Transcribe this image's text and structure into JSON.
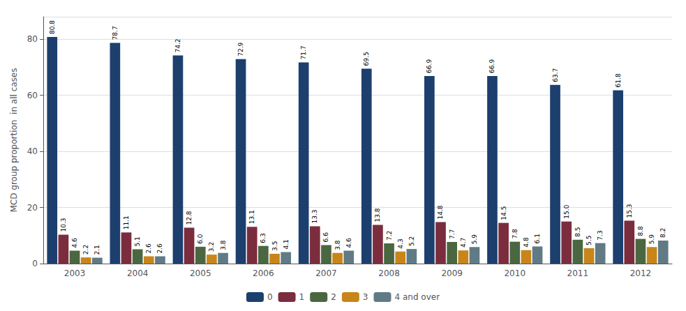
{
  "chart_data": {
    "type": "bar",
    "ylabel": "MCD group proportion  in all cases",
    "categories": [
      "2003",
      "2004",
      "2005",
      "2006",
      "2007",
      "2008",
      "2009",
      "2010",
      "2011",
      "2012"
    ],
    "series": [
      {
        "name": "0",
        "color": "#1C3F6E",
        "values": [
          80.8,
          78.7,
          74.2,
          72.9,
          71.7,
          69.5,
          66.9,
          66.9,
          63.7,
          61.8
        ],
        "value_labels": [
          "80.8",
          "78.7",
          "74.2",
          "72.9",
          "71.7",
          "69.5",
          "66.9",
          "66.9",
          "63.7",
          "61.8"
        ]
      },
      {
        "name": "1",
        "color": "#7B2D3E",
        "values": [
          10.3,
          11.1,
          12.8,
          13.1,
          13.3,
          13.8,
          14.8,
          14.5,
          15.0,
          15.3
        ],
        "value_labels": [
          "10.3",
          "11.1",
          "12.8",
          "13.1",
          "13.3",
          "13.8",
          "14.8",
          "14.5",
          "15.0",
          "15.3"
        ]
      },
      {
        "name": "2",
        "color": "#4A6741",
        "values": [
          4.6,
          5.1,
          6.0,
          6.3,
          6.6,
          7.2,
          7.7,
          7.8,
          8.5,
          8.8
        ],
        "value_labels": [
          "4.6",
          "5.1",
          "6.0",
          "6.3",
          "6.6",
          "7.2",
          "7.7",
          "7.8",
          "8.5",
          "8.8"
        ]
      },
      {
        "name": "3",
        "color": "#C8851A",
        "values": [
          2.2,
          2.6,
          3.2,
          3.5,
          3.8,
          4.3,
          4.7,
          4.8,
          5.5,
          5.9
        ],
        "value_labels": [
          "2.2",
          "2.6",
          "3.2",
          "3.5",
          "3.8",
          "4.3",
          "4.7",
          "4.8",
          "5.5",
          "5.9"
        ]
      },
      {
        "name": "4 and over",
        "color": "#607B86",
        "values": [
          2.1,
          2.6,
          3.8,
          4.1,
          4.6,
          5.2,
          5.9,
          6.1,
          7.3,
          8.2
        ],
        "value_labels": [
          "2.1",
          "2.6",
          "3.8",
          "4.1",
          "4.6",
          "5.2",
          "5.9",
          "6.1",
          "7.3",
          "8.2"
        ]
      }
    ],
    "ylim": [
      0,
      88
    ],
    "yticks": [
      0,
      20,
      40,
      60,
      80
    ],
    "grid": true,
    "legend": "bottom",
    "data_labels": true
  }
}
